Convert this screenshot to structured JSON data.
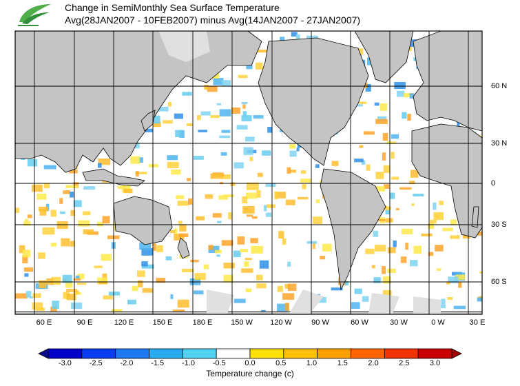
{
  "header": {
    "title_line_1": "Change in SemiMonthly Sea Surface Temperature",
    "title_line_2": "Avg(28JAN2007 - 10FEB2007) minus Avg(14JAN2007 - 27JAN2007)"
  },
  "map": {
    "longitude_labels": [
      "60 E",
      "90 E",
      "120 E",
      "150 E",
      "180 E",
      "150 W",
      "120 W",
      "90 W",
      "60 W",
      "30 W",
      "0 W",
      "30 E"
    ],
    "latitude_labels": [
      "60 N",
      "30 N",
      "0",
      "30 S",
      "60 S"
    ],
    "colors": {
      "land": "#c4c4c4",
      "ice": "#e0e0e0",
      "grid": "#000000"
    }
  },
  "colorbar": {
    "tick_labels": [
      "-3.0",
      "-2.5",
      "-2.0",
      "-1.5",
      "-1.0",
      "-0.5",
      "0.0",
      "0.5",
      "1.0",
      "1.5",
      "2.0",
      "2.5",
      "3.0"
    ],
    "title": "Temperature change  (c)",
    "colors": [
      "#0a0a8c",
      "#0000c8",
      "#0a3cf0",
      "#1e78f0",
      "#28aaf0",
      "#50d2f0",
      "#ffffff",
      "#ffe000",
      "#ffc000",
      "#ffa000",
      "#ff6400",
      "#f03200",
      "#c80000",
      "#a00000"
    ]
  }
}
